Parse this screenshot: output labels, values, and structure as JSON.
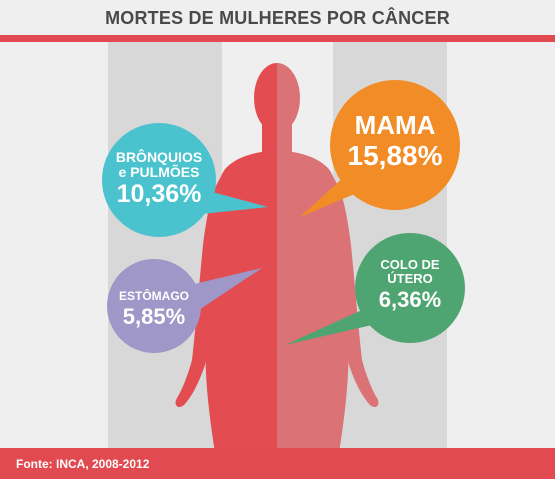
{
  "title": "MORTES DE MULHERES POR CÂNCER",
  "source": "Fonte: INCA, 2008-2012",
  "colors": {
    "accent": "#e04a50",
    "body_left": "#e34d52",
    "body_right": "#db7275",
    "stripe": "#d8d8d8",
    "bronquios": "#4ac3cf",
    "estomago": "#9e97c7",
    "mama": "#f28c26",
    "colo": "#4fa572"
  },
  "cancers": {
    "bronquios": {
      "line1": "BRÔNQUIOS",
      "line2": "e PULMÕES",
      "value": "10,36%"
    },
    "estomago": {
      "line1": "ESTÔMAGO",
      "value": "5,85%"
    },
    "mama": {
      "line1": "MAMA",
      "value": "15,88%"
    },
    "colo": {
      "line1": "COLO DE",
      "line2": "ÚTERO",
      "value": "6,36%"
    }
  }
}
